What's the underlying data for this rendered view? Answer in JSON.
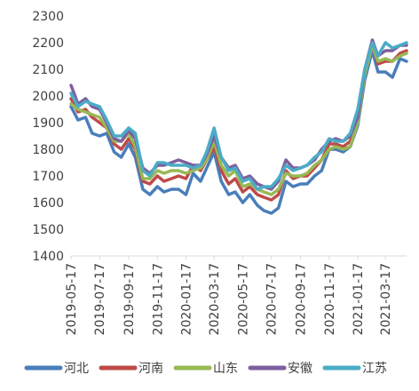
{
  "chart_data": {
    "type": "line",
    "title": "",
    "xlabel": "",
    "ylabel": "",
    "ylim": [
      1400,
      2300
    ],
    "yticks": [
      1400,
      1500,
      1600,
      1700,
      1800,
      1900,
      2000,
      2100,
      2200,
      2300
    ],
    "xlim": [
      "2019-05-17",
      "2021-05-01"
    ],
    "xticks": [
      "2019-05-17",
      "2019-07-17",
      "2019-09-17",
      "2019-11-17",
      "2020-01-17",
      "2020-03-17",
      "2020-05-17",
      "2020-07-17",
      "2020-09-17",
      "2020-11-17",
      "2021-01-17",
      "2021-03-17"
    ],
    "grid": false,
    "legend_position": "bottom",
    "series": [
      {
        "name": "河北",
        "color": "#4a7ebb",
        "points": [
          [
            "2019-05-17",
            1960
          ],
          [
            "2019-06-01",
            1910
          ],
          [
            "2019-06-17",
            1920
          ],
          [
            "2019-07-01",
            1860
          ],
          [
            "2019-07-17",
            1850
          ],
          [
            "2019-08-01",
            1860
          ],
          [
            "2019-08-17",
            1790
          ],
          [
            "2019-09-01",
            1770
          ],
          [
            "2019-09-17",
            1820
          ],
          [
            "2019-10-01",
            1770
          ],
          [
            "2019-10-17",
            1650
          ],
          [
            "2019-11-01",
            1630
          ],
          [
            "2019-11-17",
            1660
          ],
          [
            "2019-12-01",
            1640
          ],
          [
            "2019-12-17",
            1650
          ],
          [
            "2020-01-01",
            1650
          ],
          [
            "2020-01-17",
            1630
          ],
          [
            "2020-02-01",
            1710
          ],
          [
            "2020-02-17",
            1680
          ],
          [
            "2020-03-01",
            1730
          ],
          [
            "2020-03-17",
            1790
          ],
          [
            "2020-04-01",
            1680
          ],
          [
            "2020-04-17",
            1630
          ],
          [
            "2020-05-01",
            1640
          ],
          [
            "2020-05-17",
            1600
          ],
          [
            "2020-06-01",
            1630
          ],
          [
            "2020-06-17",
            1590
          ],
          [
            "2020-07-01",
            1570
          ],
          [
            "2020-07-17",
            1560
          ],
          [
            "2020-08-01",
            1580
          ],
          [
            "2020-08-17",
            1680
          ],
          [
            "2020-09-01",
            1660
          ],
          [
            "2020-09-17",
            1670
          ],
          [
            "2020-10-01",
            1670
          ],
          [
            "2020-10-17",
            1700
          ],
          [
            "2020-11-01",
            1720
          ],
          [
            "2020-11-17",
            1800
          ],
          [
            "2020-12-01",
            1800
          ],
          [
            "2020-12-17",
            1790
          ],
          [
            "2021-01-01",
            1810
          ],
          [
            "2021-01-17",
            1890
          ],
          [
            "2021-02-01",
            2060
          ],
          [
            "2021-02-17",
            2170
          ],
          [
            "2021-03-01",
            2090
          ],
          [
            "2021-03-17",
            2090
          ],
          [
            "2021-04-01",
            2070
          ],
          [
            "2021-04-17",
            2140
          ],
          [
            "2021-05-01",
            2130
          ]
        ]
      },
      {
        "name": "河南",
        "color": "#be4b48",
        "points": [
          [
            "2019-05-17",
            1990
          ],
          [
            "2019-06-01",
            1940
          ],
          [
            "2019-06-17",
            1950
          ],
          [
            "2019-07-01",
            1920
          ],
          [
            "2019-07-17",
            1900
          ],
          [
            "2019-08-01",
            1880
          ],
          [
            "2019-08-17",
            1820
          ],
          [
            "2019-09-01",
            1800
          ],
          [
            "2019-09-17",
            1840
          ],
          [
            "2019-10-01",
            1800
          ],
          [
            "2019-10-17",
            1680
          ],
          [
            "2019-11-01",
            1670
          ],
          [
            "2019-11-17",
            1700
          ],
          [
            "2019-12-01",
            1680
          ],
          [
            "2019-12-17",
            1690
          ],
          [
            "2020-01-01",
            1700
          ],
          [
            "2020-01-17",
            1690
          ],
          [
            "2020-02-01",
            1740
          ],
          [
            "2020-02-17",
            1720
          ],
          [
            "2020-03-01",
            1760
          ],
          [
            "2020-03-17",
            1810
          ],
          [
            "2020-04-01",
            1720
          ],
          [
            "2020-04-17",
            1670
          ],
          [
            "2020-05-01",
            1690
          ],
          [
            "2020-05-17",
            1640
          ],
          [
            "2020-06-01",
            1660
          ],
          [
            "2020-06-17",
            1630
          ],
          [
            "2020-07-01",
            1620
          ],
          [
            "2020-07-17",
            1610
          ],
          [
            "2020-08-01",
            1630
          ],
          [
            "2020-08-17",
            1720
          ],
          [
            "2020-09-01",
            1690
          ],
          [
            "2020-09-17",
            1700
          ],
          [
            "2020-10-01",
            1700
          ],
          [
            "2020-10-17",
            1730
          ],
          [
            "2020-11-01",
            1760
          ],
          [
            "2020-11-17",
            1820
          ],
          [
            "2020-12-01",
            1820
          ],
          [
            "2020-12-17",
            1810
          ],
          [
            "2021-01-01",
            1830
          ],
          [
            "2021-01-17",
            1910
          ],
          [
            "2021-02-01",
            2090
          ],
          [
            "2021-02-17",
            2190
          ],
          [
            "2021-03-01",
            2120
          ],
          [
            "2021-03-17",
            2130
          ],
          [
            "2021-04-01",
            2130
          ],
          [
            "2021-04-17",
            2160
          ],
          [
            "2021-05-01",
            2170
          ]
        ]
      },
      {
        "name": "山东",
        "color": "#98b954",
        "points": [
          [
            "2019-05-17",
            1970
          ],
          [
            "2019-06-01",
            1950
          ],
          [
            "2019-06-17",
            1940
          ],
          [
            "2019-07-01",
            1930
          ],
          [
            "2019-07-17",
            1920
          ],
          [
            "2019-08-01",
            1880
          ],
          [
            "2019-08-17",
            1830
          ],
          [
            "2019-09-01",
            1830
          ],
          [
            "2019-09-17",
            1860
          ],
          [
            "2019-10-01",
            1810
          ],
          [
            "2019-10-17",
            1690
          ],
          [
            "2019-11-01",
            1690
          ],
          [
            "2019-11-17",
            1720
          ],
          [
            "2019-12-01",
            1710
          ],
          [
            "2019-12-17",
            1720
          ],
          [
            "2020-01-01",
            1720
          ],
          [
            "2020-01-17",
            1710
          ],
          [
            "2020-02-01",
            1720
          ],
          [
            "2020-02-17",
            1730
          ],
          [
            "2020-03-01",
            1760
          ],
          [
            "2020-03-17",
            1830
          ],
          [
            "2020-04-01",
            1740
          ],
          [
            "2020-04-17",
            1700
          ],
          [
            "2020-05-01",
            1720
          ],
          [
            "2020-05-17",
            1660
          ],
          [
            "2020-06-01",
            1670
          ],
          [
            "2020-06-17",
            1650
          ],
          [
            "2020-07-01",
            1640
          ],
          [
            "2020-07-17",
            1630
          ],
          [
            "2020-08-01",
            1650
          ],
          [
            "2020-08-17",
            1710
          ],
          [
            "2020-09-01",
            1700
          ],
          [
            "2020-09-17",
            1700
          ],
          [
            "2020-10-01",
            1710
          ],
          [
            "2020-10-17",
            1740
          ],
          [
            "2020-11-01",
            1760
          ],
          [
            "2020-11-17",
            1800
          ],
          [
            "2020-12-01",
            1810
          ],
          [
            "2020-12-17",
            1800
          ],
          [
            "2021-01-01",
            1810
          ],
          [
            "2021-01-17",
            1900
          ],
          [
            "2021-02-01",
            2080
          ],
          [
            "2021-02-17",
            2190
          ],
          [
            "2021-03-01",
            2130
          ],
          [
            "2021-03-17",
            2140
          ],
          [
            "2021-04-01",
            2130
          ],
          [
            "2021-04-17",
            2150
          ],
          [
            "2021-05-01",
            2160
          ]
        ]
      },
      {
        "name": "安徽",
        "color": "#7d5fa0",
        "points": [
          [
            "2019-05-17",
            2040
          ],
          [
            "2019-06-01",
            1970
          ],
          [
            "2019-06-17",
            1990
          ],
          [
            "2019-07-01",
            1960
          ],
          [
            "2019-07-17",
            1950
          ],
          [
            "2019-08-01",
            1900
          ],
          [
            "2019-08-17",
            1840
          ],
          [
            "2019-09-01",
            1830
          ],
          [
            "2019-09-17",
            1870
          ],
          [
            "2019-10-01",
            1840
          ],
          [
            "2019-10-17",
            1730
          ],
          [
            "2019-11-01",
            1710
          ],
          [
            "2019-11-17",
            1740
          ],
          [
            "2019-12-01",
            1740
          ],
          [
            "2019-12-17",
            1750
          ],
          [
            "2020-01-01",
            1760
          ],
          [
            "2020-01-17",
            1750
          ],
          [
            "2020-02-01",
            1740
          ],
          [
            "2020-02-17",
            1740
          ],
          [
            "2020-03-01",
            1780
          ],
          [
            "2020-03-17",
            1850
          ],
          [
            "2020-04-01",
            1770
          ],
          [
            "2020-04-17",
            1730
          ],
          [
            "2020-05-01",
            1740
          ],
          [
            "2020-05-17",
            1690
          ],
          [
            "2020-06-01",
            1700
          ],
          [
            "2020-06-17",
            1670
          ],
          [
            "2020-07-01",
            1660
          ],
          [
            "2020-07-17",
            1650
          ],
          [
            "2020-08-01",
            1680
          ],
          [
            "2020-08-17",
            1760
          ],
          [
            "2020-09-01",
            1730
          ],
          [
            "2020-09-17",
            1730
          ],
          [
            "2020-10-01",
            1740
          ],
          [
            "2020-10-17",
            1760
          ],
          [
            "2020-11-01",
            1800
          ],
          [
            "2020-11-17",
            1830
          ],
          [
            "2020-12-01",
            1840
          ],
          [
            "2020-12-17",
            1830
          ],
          [
            "2021-01-01",
            1850
          ],
          [
            "2021-01-17",
            1920
          ],
          [
            "2021-02-01",
            2100
          ],
          [
            "2021-02-17",
            2210
          ],
          [
            "2021-03-01",
            2150
          ],
          [
            "2021-03-17",
            2170
          ],
          [
            "2021-04-01",
            2170
          ],
          [
            "2021-04-17",
            2190
          ],
          [
            "2021-05-01",
            2190
          ]
        ]
      },
      {
        "name": "江苏",
        "color": "#4bacc6",
        "points": [
          [
            "2019-05-17",
            2010
          ],
          [
            "2019-06-01",
            1960
          ],
          [
            "2019-06-17",
            1980
          ],
          [
            "2019-07-01",
            1970
          ],
          [
            "2019-07-17",
            1960
          ],
          [
            "2019-08-01",
            1910
          ],
          [
            "2019-08-17",
            1850
          ],
          [
            "2019-09-01",
            1850
          ],
          [
            "2019-09-17",
            1880
          ],
          [
            "2019-10-01",
            1860
          ],
          [
            "2019-10-17",
            1720
          ],
          [
            "2019-11-01",
            1700
          ],
          [
            "2019-11-17",
            1750
          ],
          [
            "2019-12-01",
            1750
          ],
          [
            "2019-12-17",
            1740
          ],
          [
            "2020-01-01",
            1740
          ],
          [
            "2020-01-17",
            1740
          ],
          [
            "2020-02-01",
            1730
          ],
          [
            "2020-02-17",
            1740
          ],
          [
            "2020-03-01",
            1790
          ],
          [
            "2020-03-17",
            1880
          ],
          [
            "2020-04-01",
            1770
          ],
          [
            "2020-04-17",
            1720
          ],
          [
            "2020-05-01",
            1730
          ],
          [
            "2020-05-17",
            1680
          ],
          [
            "2020-06-01",
            1690
          ],
          [
            "2020-06-17",
            1650
          ],
          [
            "2020-07-01",
            1660
          ],
          [
            "2020-07-17",
            1660
          ],
          [
            "2020-08-01",
            1690
          ],
          [
            "2020-08-17",
            1740
          ],
          [
            "2020-09-01",
            1720
          ],
          [
            "2020-09-17",
            1730
          ],
          [
            "2020-10-01",
            1740
          ],
          [
            "2020-10-17",
            1770
          ],
          [
            "2020-11-01",
            1790
          ],
          [
            "2020-11-17",
            1840
          ],
          [
            "2020-12-01",
            1830
          ],
          [
            "2020-12-17",
            1830
          ],
          [
            "2021-01-01",
            1860
          ],
          [
            "2021-01-17",
            1950
          ],
          [
            "2021-02-01",
            2100
          ],
          [
            "2021-02-17",
            2200
          ],
          [
            "2021-03-01",
            2150
          ],
          [
            "2021-03-17",
            2200
          ],
          [
            "2021-04-01",
            2180
          ],
          [
            "2021-04-17",
            2190
          ],
          [
            "2021-05-01",
            2200
          ]
        ]
      }
    ]
  }
}
